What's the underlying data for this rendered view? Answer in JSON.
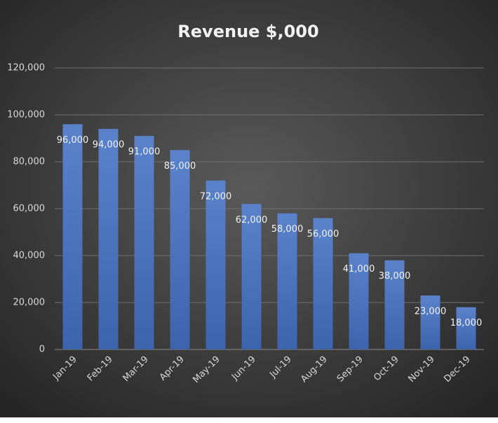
{
  "chart_data": {
    "type": "bar",
    "title": "Revenue $,000",
    "categories": [
      "Jan-19",
      "Feb-19",
      "Mar-19",
      "Apr-19",
      "May-19",
      "Jun-19",
      "Jul-19",
      "Aug-19",
      "Sep-19",
      "Oct-19",
      "Nov-19",
      "Dec-19"
    ],
    "values": [
      96000,
      94000,
      91000,
      85000,
      72000,
      62000,
      58000,
      56000,
      41000,
      38000,
      23000,
      18000
    ],
    "value_labels": [
      "96,000",
      "94,000",
      "91,000",
      "85,000",
      "72,000",
      "62,000",
      "58,000",
      "56,000",
      "41,000",
      "38,000",
      "23,000",
      "18,000"
    ],
    "color": "#4472c4",
    "ylim": [
      0,
      120000
    ],
    "yticks": [
      0,
      {
        "value": 20000,
        "label": "20,000"
      },
      {
        "value": 40000,
        "label": "40,000"
      },
      {
        "value": 60000,
        "label": "60,000"
      },
      {
        "value": 80000,
        "label": "80,000"
      },
      {
        "value": 100000,
        "label": "100,000"
      },
      {
        "value": 120000,
        "label": "120,000"
      }
    ],
    "grid": true
  }
}
